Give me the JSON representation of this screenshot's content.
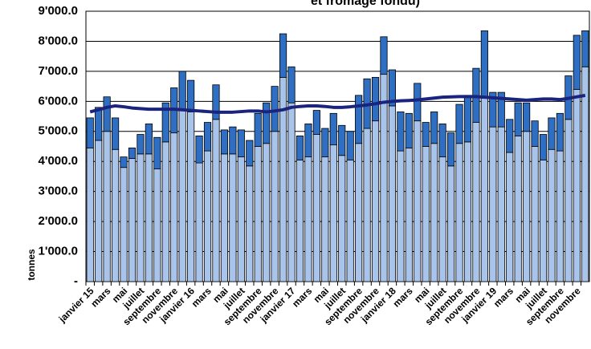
{
  "chart_data": {
    "type": "bar",
    "title": "et fromage fondu)",
    "y_label": "tonnes",
    "categories": [
      "janvier 15",
      null,
      "mars",
      null,
      "mai",
      null,
      "juillet",
      null,
      "septembre",
      null,
      "novembre",
      null,
      "janvier 16",
      null,
      "mars",
      null,
      "mai",
      null,
      "juillet",
      null,
      "septembre",
      null,
      "novembre",
      null,
      "janvier 17",
      null,
      "mars",
      null,
      "mai",
      null,
      "juillet",
      null,
      "septembre",
      null,
      "novembre",
      null,
      "janvier 18",
      null,
      "mars",
      null,
      "mai",
      null,
      "juillet",
      null,
      "septembre",
      null,
      "novembre",
      null,
      "janvier 19",
      null,
      "mars",
      null,
      "mai",
      null,
      "juillet",
      null,
      "septembre",
      null,
      "novembre",
      null
    ],
    "series": [
      {
        "color": "#a9c4eb",
        "values": [
          4450,
          4700,
          5000,
          4400,
          3800,
          4100,
          4250,
          4250,
          3750,
          4650,
          4950,
          5700,
          5650,
          3950,
          4350,
          5400,
          4250,
          4250,
          4150,
          3850,
          4500,
          4600,
          5000,
          6800,
          5950,
          4050,
          4150,
          4900,
          4150,
          4550,
          4200,
          4050,
          4600,
          5100,
          5350,
          6900,
          5850,
          4350,
          4450,
          5350,
          4500,
          4600,
          4150,
          3850,
          4600,
          4650,
          5300,
          6100,
          5150,
          5150,
          4300,
          4850,
          5000,
          4500,
          4050,
          4400,
          4350,
          5400,
          6400,
          7150
        ]
      },
      {
        "color": "#2e6fc4",
        "values": [
          1000,
          1100,
          1150,
          1050,
          350,
          350,
          650,
          1000,
          1050,
          1300,
          1500,
          1300,
          1050,
          900,
          950,
          1150,
          800,
          900,
          900,
          850,
          1100,
          1350,
          1500,
          1450,
          1200,
          800,
          1100,
          800,
          950,
          1050,
          1000,
          950,
          1600,
          1650,
          1450,
          1250,
          1200,
          1300,
          1150,
          1250,
          800,
          1050,
          1100,
          1100,
          1300,
          1550,
          1800,
          2250,
          1150,
          1150,
          1100,
          1100,
          950,
          850,
          850,
          1050,
          1250,
          1450,
          1800,
          1200
        ]
      },
      {
        "color": "#1a237e",
        "kind": "line",
        "values": [
          5650,
          5720,
          5800,
          5850,
          5820,
          5780,
          5760,
          5740,
          5740,
          5740,
          5740,
          5720,
          5700,
          5680,
          5660,
          5640,
          5640,
          5640,
          5660,
          5680,
          5680,
          5650,
          5680,
          5720,
          5800,
          5830,
          5850,
          5850,
          5830,
          5800,
          5800,
          5820,
          5850,
          5880,
          5920,
          5970,
          6000,
          6020,
          6030,
          6050,
          6080,
          6110,
          6140,
          6150,
          6160,
          6160,
          6160,
          6140,
          6120,
          6100,
          6080,
          6060,
          6040,
          6060,
          6080,
          6080,
          6060,
          6100,
          6150,
          6200
        ]
      }
    ],
    "ylim": [
      0,
      9000
    ],
    "yticks": [
      {
        "value": 0,
        "label": "-"
      },
      {
        "value": 1000,
        "label": "1'000.0"
      },
      {
        "value": 2000,
        "label": "2'000.0"
      },
      {
        "value": 3000,
        "label": "3'000.0"
      },
      {
        "value": 4000,
        "label": "4'000.0"
      },
      {
        "value": 5000,
        "label": "5'000.0"
      },
      {
        "value": 6000,
        "label": "6'000.0"
      },
      {
        "value": 7000,
        "label": "7'000.0"
      },
      {
        "value": 8000,
        "label": "8'000.0"
      },
      {
        "value": 9000,
        "label": "9'000.0"
      }
    ],
    "grid": true
  }
}
